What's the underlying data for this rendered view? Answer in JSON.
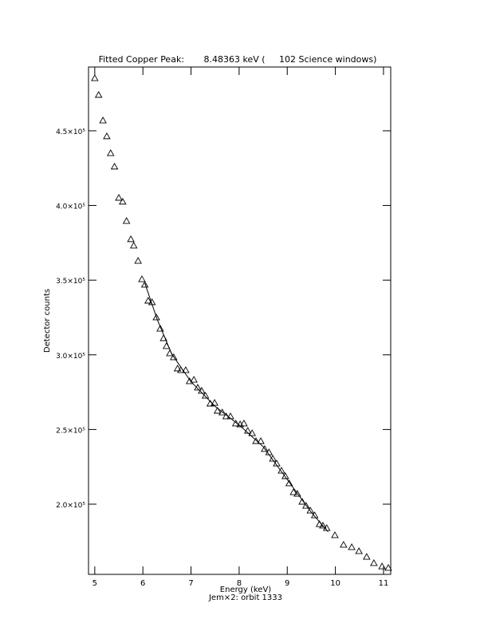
{
  "chart_data": {
    "type": "scatter",
    "title": "Fitted Copper Peak:       8.48363 keV (     102 Science windows)",
    "x_label": "Energy (keV)",
    "subtitle": "Jem×2: orbit 1333",
    "y_label": "Detector counts",
    "xlim": [
      4.87,
      11.15
    ],
    "ylim": [
      153000,
      492700
    ],
    "xticks": [
      5,
      6,
      7,
      8,
      9,
      10,
      11
    ],
    "yticks": [
      {
        "value": 200000,
        "label": "2.0×10⁵"
      },
      {
        "value": 250000,
        "label": "2.5×10⁵"
      },
      {
        "value": 300000,
        "label": "3.0×10⁵"
      },
      {
        "value": 350000,
        "label": "3.5×10⁵"
      },
      {
        "value": 400000,
        "label": "4.0×10⁵"
      },
      {
        "value": 450000,
        "label": "4.5×10⁵"
      }
    ],
    "color": "#000000",
    "series": [
      {
        "mode": "markers",
        "x": [
          5.0,
          5.08,
          5.17,
          5.25,
          5.33,
          5.41,
          5.5,
          5.58,
          5.66,
          5.75,
          5.81,
          5.9,
          5.98,
          6.04,
          6.11,
          6.19,
          6.28,
          6.36,
          6.43,
          6.49,
          6.56,
          6.64,
          6.72,
          6.79,
          6.89,
          6.97,
          7.06,
          7.14,
          7.22,
          7.3,
          7.4,
          7.49,
          7.55,
          7.65,
          7.73,
          7.82,
          7.93,
          8.02,
          8.1,
          8.18,
          8.27,
          8.35,
          8.45,
          8.53,
          8.62,
          8.7,
          8.78,
          8.88,
          8.96,
          9.04,
          9.13,
          9.21,
          9.31,
          9.39,
          9.48,
          9.57,
          9.67,
          9.74,
          9.82,
          9.99,
          10.17,
          10.34,
          10.49,
          10.65,
          10.8,
          10.97,
          11.1
        ],
        "values": [
          485200,
          474000,
          456900,
          446300,
          435000,
          426000,
          405100,
          402500,
          389600,
          377400,
          373100,
          362900,
          350600,
          346900,
          336200,
          335200,
          325000,
          317500,
          311100,
          305800,
          301000,
          298300,
          290800,
          289700,
          289700,
          282300,
          283300,
          278000,
          275900,
          272600,
          267300,
          267800,
          262500,
          261400,
          258800,
          258800,
          254000,
          253400,
          254000,
          249100,
          247500,
          242200,
          242200,
          236900,
          234700,
          230400,
          227200,
          222400,
          218700,
          213900,
          208000,
          206900,
          201600,
          198900,
          195700,
          192500,
          186600,
          185600,
          184000,
          179200,
          172800,
          171200,
          168500,
          164700,
          160500,
          158300,
          157300
        ]
      },
      {
        "mode": "lines",
        "x": [
          6.04,
          6.3,
          6.6,
          7.0,
          7.5,
          8.0,
          8.5,
          9.0,
          9.5,
          9.85
        ],
        "values": [
          348000,
          323500,
          300500,
          282000,
          265500,
          253000,
          238500,
          216500,
          194500,
          181500
        ]
      }
    ]
  }
}
